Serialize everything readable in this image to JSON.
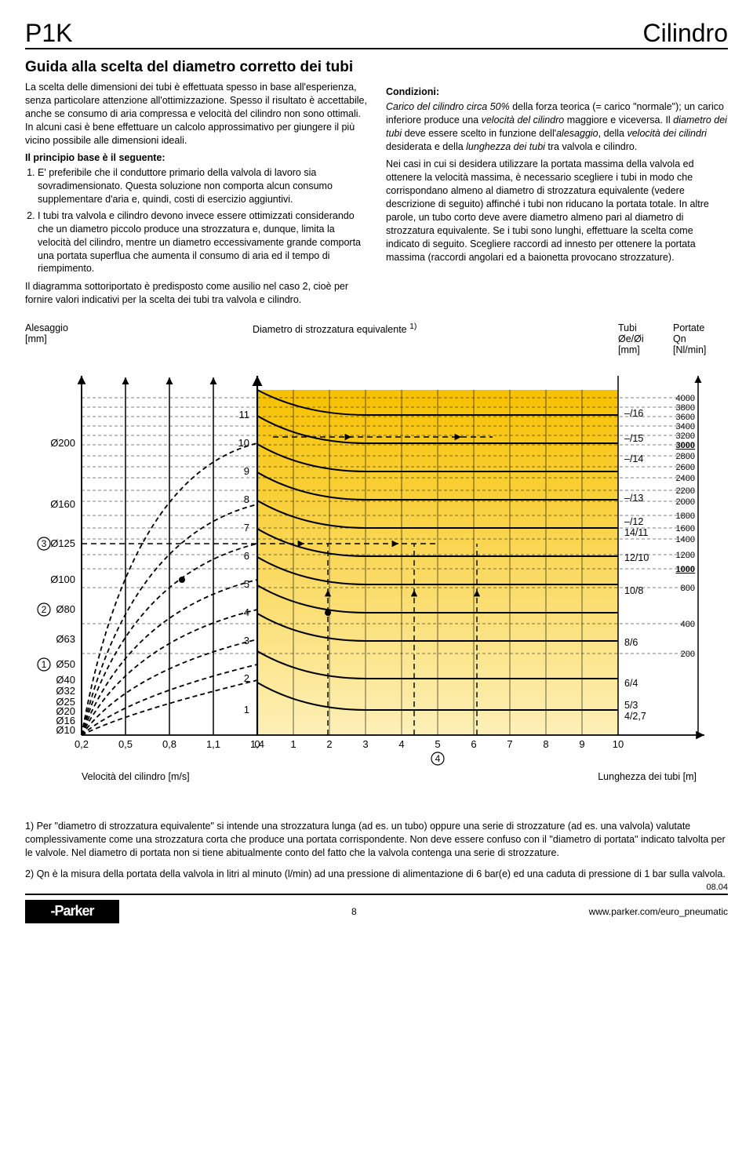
{
  "header": {
    "left": "P1K",
    "right": "Cilindro"
  },
  "title": "Guida alla scelta del diametro corretto dei tubi",
  "left_col": {
    "p1": "La scelta delle dimensioni dei tubi è effettuata spesso in base all'esperienza, senza particolare attenzione all'ottimizzazione. Spesso il risultato è accettabile, anche se consumo di aria compressa e velocità del cilindro non sono ottimali. In alcuni casi è bene effettuare un calcolo approssimativo per giungere il più vicino possibile alle dimensioni ideali.",
    "sub1": "Il principio base è il seguente:",
    "li1": "E' preferibile che il conduttore primario della valvola di lavoro sia sovradimensionato. Questa soluzione non comporta alcun consumo supplementare d'aria e, quindi, costi di esercizio aggiuntivi.",
    "li2": "I tubi tra valvola e cilindro devono invece essere ottimizzati considerando che un diametro piccolo produce una strozzatura e, dunque, limita la velocità del cilindro, mentre un diametro eccessivamente grande comporta una portata superflua che aumenta il consumo di aria ed il tempo di riempimento.",
    "p2": "Il diagramma sottoriportato è predisposto come ausilio nel caso 2, cioè per fornire valori indicativi per la scelta dei tubi tra valvola e cilindro."
  },
  "right_col": {
    "sub": "Condizioni:",
    "p1a": "Carico del cilindro circa 50%",
    "p1b": " della forza teorica (= carico \"normale\"); un carico inferiore produce una ",
    "p1c": "velocità del cilindro",
    "p1d": " maggiore e viceversa. Il ",
    "p1e": "diametro dei tubi",
    "p1f": " deve essere scelto in funzione dell'",
    "p1g": "alesaggio",
    "p1h": ", della ",
    "p1i": "velocità dei cilindri",
    "p1j": " desiderata e della ",
    "p1k": "lunghezza dei tubi",
    "p1l": " tra valvola e cilindro.",
    "p2": "Nei casi in cui si desidera utilizzare la portata massima della valvola ed ottenere la velocità massima, è necessario scegliere i tubi in modo che corrispondano almeno al diametro di strozzatura equivalente (vedere descrizione di seguito) affinché i tubi non riducano la portata totale. In altre parole, un tubo corto deve avere diametro almeno pari al diametro di strozzatura equivalente. Se i tubi sono lunghi, effettuare la scelta come indicato di seguito. Scegliere raccordi ad innesto per ottenere la portata massima (raccordi angolari ed a baionetta provocano strozzature)."
  },
  "chart": {
    "top_labels": {
      "alesaggio": "Alesaggio",
      "alesaggio_unit": "[mm]",
      "center": "Diametro di strozzatura equivalente",
      "center_sup": "1)",
      "tubi": "Tubi",
      "tubi_unit": "Øe/Øi",
      "tubi_unit2": "[mm]",
      "portate": "Portate",
      "portate_sym": "Qn",
      "portate_unit": "[Nl/min]"
    },
    "bore_labels": [
      "Ø200",
      "Ø160",
      "Ø125",
      "Ø100",
      "Ø80",
      "Ø63",
      "Ø50",
      "Ø40",
      "Ø32",
      "Ø25",
      "Ø20",
      "Ø16",
      "Ø10"
    ],
    "bore_y": [
      108,
      186,
      236,
      282,
      320,
      358,
      390,
      410,
      424,
      438,
      450,
      462,
      474
    ],
    "circled_left": {
      "3": 236,
      "2": 320,
      "1": 390
    },
    "vel_ticks": [
      "0,2",
      "0,5",
      "0,8",
      "1,1",
      "1,4"
    ],
    "vel_x": [
      72,
      128,
      184,
      240,
      296
    ],
    "len_ticks": [
      "0",
      "1",
      "2",
      "3",
      "4",
      "5",
      "6",
      "7",
      "8",
      "9",
      "10"
    ],
    "len_x_start": 296,
    "len_x_step": 46,
    "vel_axis_label": "Velocità del cilindro [m/s]",
    "len_axis_label": "Lunghezza dei tubi [m]",
    "circled_4": "4",
    "stroz_labels": [
      "11",
      "10",
      "9",
      "8",
      "7",
      "6",
      "5",
      "4",
      "3",
      "2",
      "1"
    ],
    "stroz_y": [
      72,
      108,
      144,
      180,
      216,
      252,
      288,
      324,
      360,
      408,
      448
    ],
    "right_tubi": [
      "–/16",
      "–/15",
      "–/14",
      "–/13",
      "–/12",
      "14/11",
      "12/10",
      "10/8",
      "8/6",
      "6/4",
      "5/3",
      "4/2,7"
    ],
    "right_tubi_y": [
      70,
      102,
      128,
      178,
      208,
      222,
      254,
      296,
      362,
      414,
      442,
      456
    ],
    "right_qn": [
      "4000",
      "3800",
      "3600",
      "3400",
      "3200",
      "3000",
      "2800",
      "2600",
      "2400",
      "2200",
      "2000",
      "1800",
      "1600",
      "1400",
      "1200",
      "1000",
      "800",
      "400",
      "200"
    ],
    "right_qn_y": [
      50,
      62,
      74,
      86,
      98,
      110,
      124,
      138,
      152,
      168,
      182,
      200,
      216,
      230,
      250,
      268,
      292,
      338,
      376
    ],
    "right_qn_bold_idx": [
      5,
      15
    ],
    "colors": {
      "grid": "#000000",
      "yellow_top": "#f7c100",
      "yellow_bot": "#fdf0b8",
      "curve": "#000000"
    }
  },
  "footnotes": {
    "f1": "1) Per \"diametro di strozzatura equivalente\" si intende una strozzatura lunga (ad es. un tubo) oppure una serie di strozzature (ad es. una valvola) valutate complessivamente come una strozzatura corta che produce una portata corrispondente. Non deve essere confuso con il \"diametro di portata\" indicato talvolta per le valvole. Nel diametro di portata non si tiene abitualmente conto del fatto che la valvola contenga una serie di strozzature.",
    "f2": "2) Qn è la misura della portata della valvola in litri al minuto (l/min) ad una pressione di alimentazione di 6 bar(e) ed una caduta di pressione di 1 bar sulla valvola."
  },
  "footer": {
    "logo": "-Parker",
    "page": "8",
    "url": "www.parker.com/euro_pneumatic",
    "date": "08.04"
  }
}
